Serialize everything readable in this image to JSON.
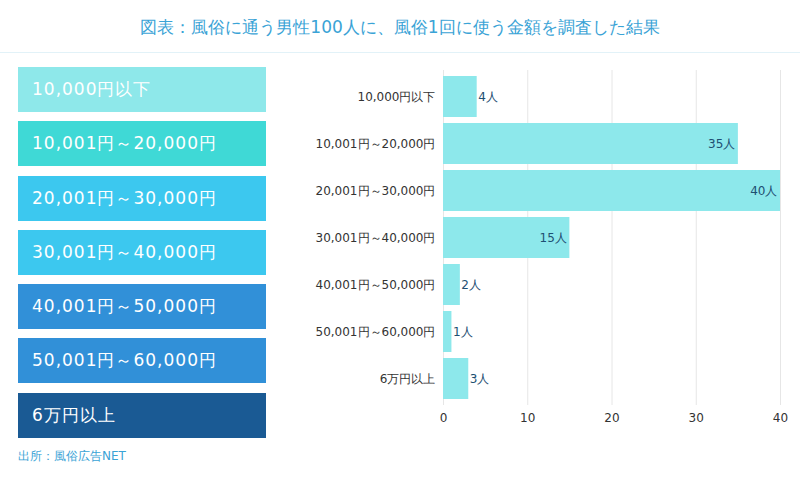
{
  "chart_data": {
    "type": "bar",
    "title": "図表：風俗に通う男性100人に、風俗1回に使う金額を調査した結果",
    "caption": "出所：風俗広告NET",
    "orientation": "horizontal",
    "categories": [
      "10,000円以下",
      "10,001円～20,000円",
      "20,001円～30,000円",
      "30,001円～40,000円",
      "40,001円～50,000円",
      "50,001円～60,000円",
      "6万円以上"
    ],
    "values": [
      4,
      35,
      40,
      15,
      2,
      1,
      3
    ],
    "value_labels": [
      "4人",
      "35人",
      "40人",
      "15人",
      "2人",
      "1人",
      "3人"
    ],
    "data_labels": true,
    "color": "#8de8eb",
    "xlim": [
      0,
      40
    ],
    "xticks": [
      0,
      10,
      20,
      30,
      40
    ],
    "grid": true
  }
}
